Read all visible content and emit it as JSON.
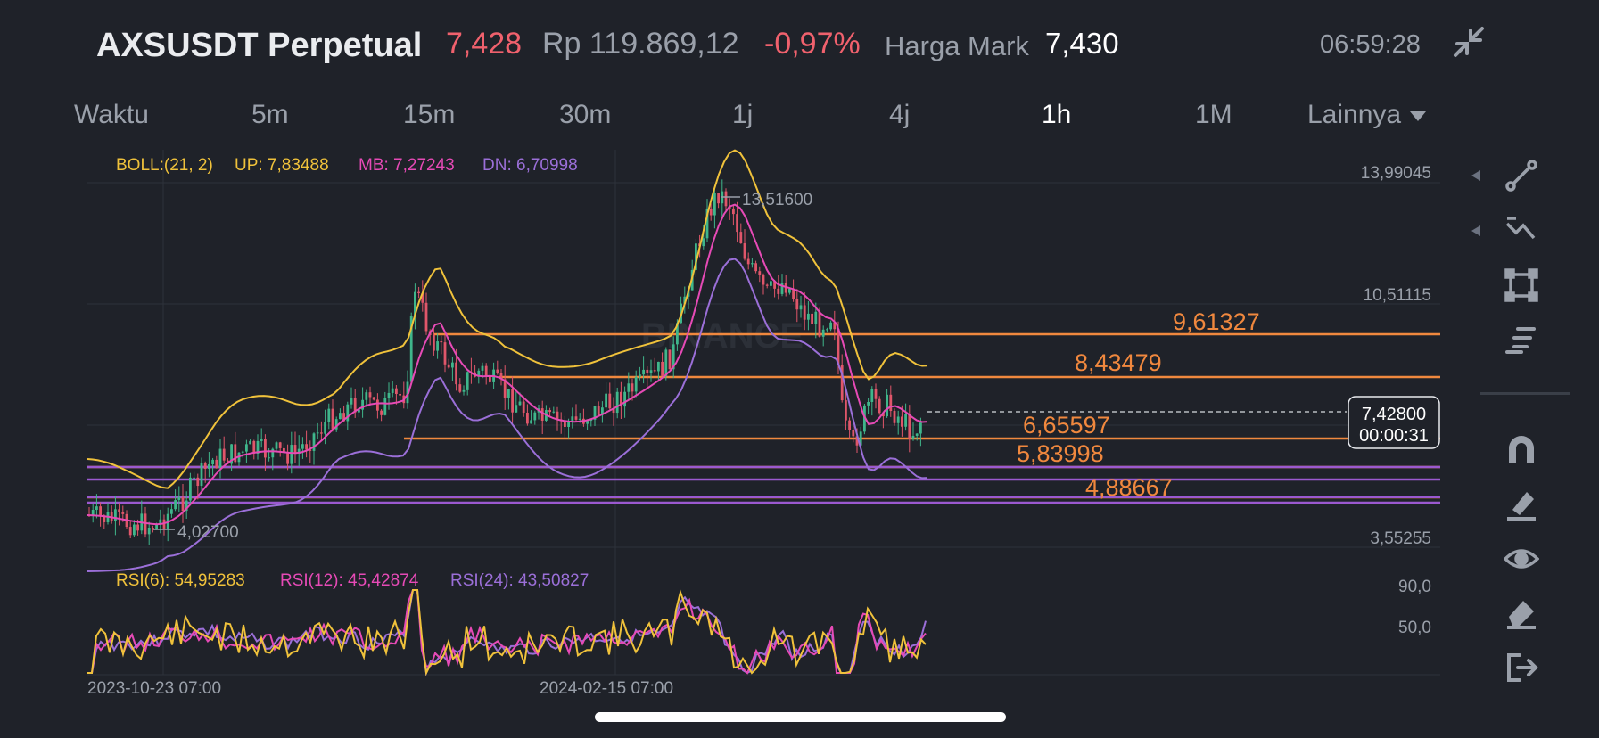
{
  "header": {
    "symbol": "AXSUSDT Perpetual",
    "last_price": "7,428",
    "idr_price": "Rp 119.869,12",
    "change": "-0,97%",
    "mark_label": "Harga Mark",
    "mark_price": "7,430",
    "time": "06:59:28"
  },
  "intervals": [
    {
      "label": "Waktu",
      "active": false
    },
    {
      "label": "5m",
      "active": false
    },
    {
      "label": "15m",
      "active": false
    },
    {
      "label": "30m",
      "active": false
    },
    {
      "label": "1j",
      "active": false
    },
    {
      "label": "4j",
      "active": false
    },
    {
      "label": "1h",
      "active": true
    },
    {
      "label": "1M",
      "active": false
    },
    {
      "label": "Lainnya",
      "active": false
    }
  ],
  "boll": {
    "label": "BOLL:(21, 2)",
    "up": "UP: 7,83488",
    "mb": "MB: 7,27243",
    "dn": "DN: 6,70998"
  },
  "rsi": {
    "r6": "RSI(6): 54,95283",
    "r12": "RSI(12): 45,42874",
    "r24": "RSI(24): 43,50827",
    "levels": [
      "90,0",
      "50,0"
    ]
  },
  "axis": {
    "price_labels": [
      "13,99045",
      "10,51115",
      "3,55255"
    ],
    "time_labels": [
      "2023-10-23 07:00",
      "2024-02-15 07:00"
    ]
  },
  "chart": {
    "high_label": "13,51600",
    "low_label": "4,02700",
    "watermark": "BINANCE",
    "current_price": "7,42800",
    "countdown": "00:00:31",
    "levels": [
      {
        "value": "9,61327",
        "color": "#f0883e"
      },
      {
        "value": "8,43479",
        "color": "#f0883e"
      },
      {
        "value": "6,65597",
        "color": "#f0883e"
      },
      {
        "value": "5,83998",
        "color": "#f0883e"
      },
      {
        "value": "4,88667",
        "color": "#f0883e"
      }
    ]
  },
  "colors": {
    "background": "#1f2229",
    "up": "#3fb68b",
    "down": "#e0566a",
    "boll_up": "#f0c23b",
    "boll_mb": "#e64ab6",
    "boll_dn": "#9b6fd8",
    "level_orange": "#f0883e",
    "level_purple": "#9b59d0"
  },
  "tools": [
    "trend-line-icon",
    "fib-tool-icon",
    "shape-tool-icon",
    "text-tool-icon",
    "magnet-icon",
    "brush-icon",
    "eye-icon",
    "eraser-icon",
    "exit-icon"
  ]
}
